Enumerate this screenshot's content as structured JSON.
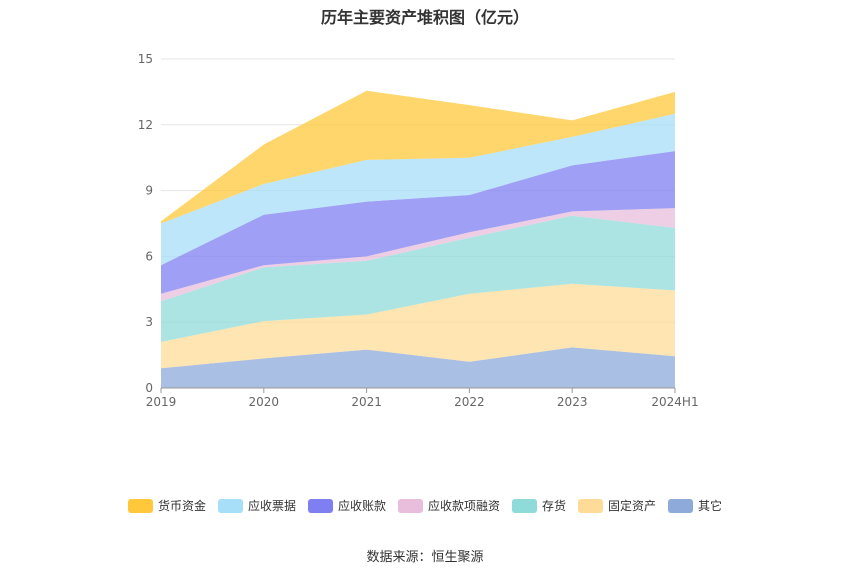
{
  "chart_data": {
    "type": "area",
    "stacked": true,
    "title": "历年主要资产堆积图（亿元）",
    "categories": [
      "2019",
      "2020",
      "2021",
      "2022",
      "2023",
      "2024H1"
    ],
    "ylim": [
      0,
      15
    ],
    "yticks": [
      0,
      3,
      6,
      9,
      12,
      15
    ],
    "grid": true,
    "legend_position": "bottom",
    "series": [
      {
        "name": "其它",
        "values": [
          0.9,
          1.35,
          1.75,
          1.2,
          1.85,
          1.45
        ],
        "color": "#8eaadb"
      },
      {
        "name": "固定资产",
        "values": [
          1.2,
          1.7,
          1.6,
          3.1,
          2.9,
          3.0
        ],
        "color": "#fedc97"
      },
      {
        "name": "存货",
        "values": [
          1.85,
          2.45,
          2.45,
          2.55,
          3.1,
          2.85
        ],
        "color": "#8fdbd9"
      },
      {
        "name": "应收款项融资",
        "values": [
          0.35,
          0.1,
          0.2,
          0.25,
          0.2,
          0.9
        ],
        "color": "#e8bedc"
      },
      {
        "name": "应收账款",
        "values": [
          1.3,
          2.3,
          2.5,
          1.7,
          2.1,
          2.6
        ],
        "color": "#7f7ff2"
      },
      {
        "name": "应收票据",
        "values": [
          1.9,
          1.4,
          1.9,
          1.7,
          1.3,
          1.7
        ],
        "color": "#a7def8"
      },
      {
        "name": "货币资金",
        "values": [
          0.1,
          1.8,
          3.15,
          2.4,
          0.75,
          1.0
        ],
        "color": "#fec83a"
      }
    ],
    "legend_order": [
      "货币资金",
      "应收票据",
      "应收账款",
      "应收款项融资",
      "存货",
      "固定资产",
      "其它"
    ]
  },
  "source_text": "数据来源：恒生聚源"
}
